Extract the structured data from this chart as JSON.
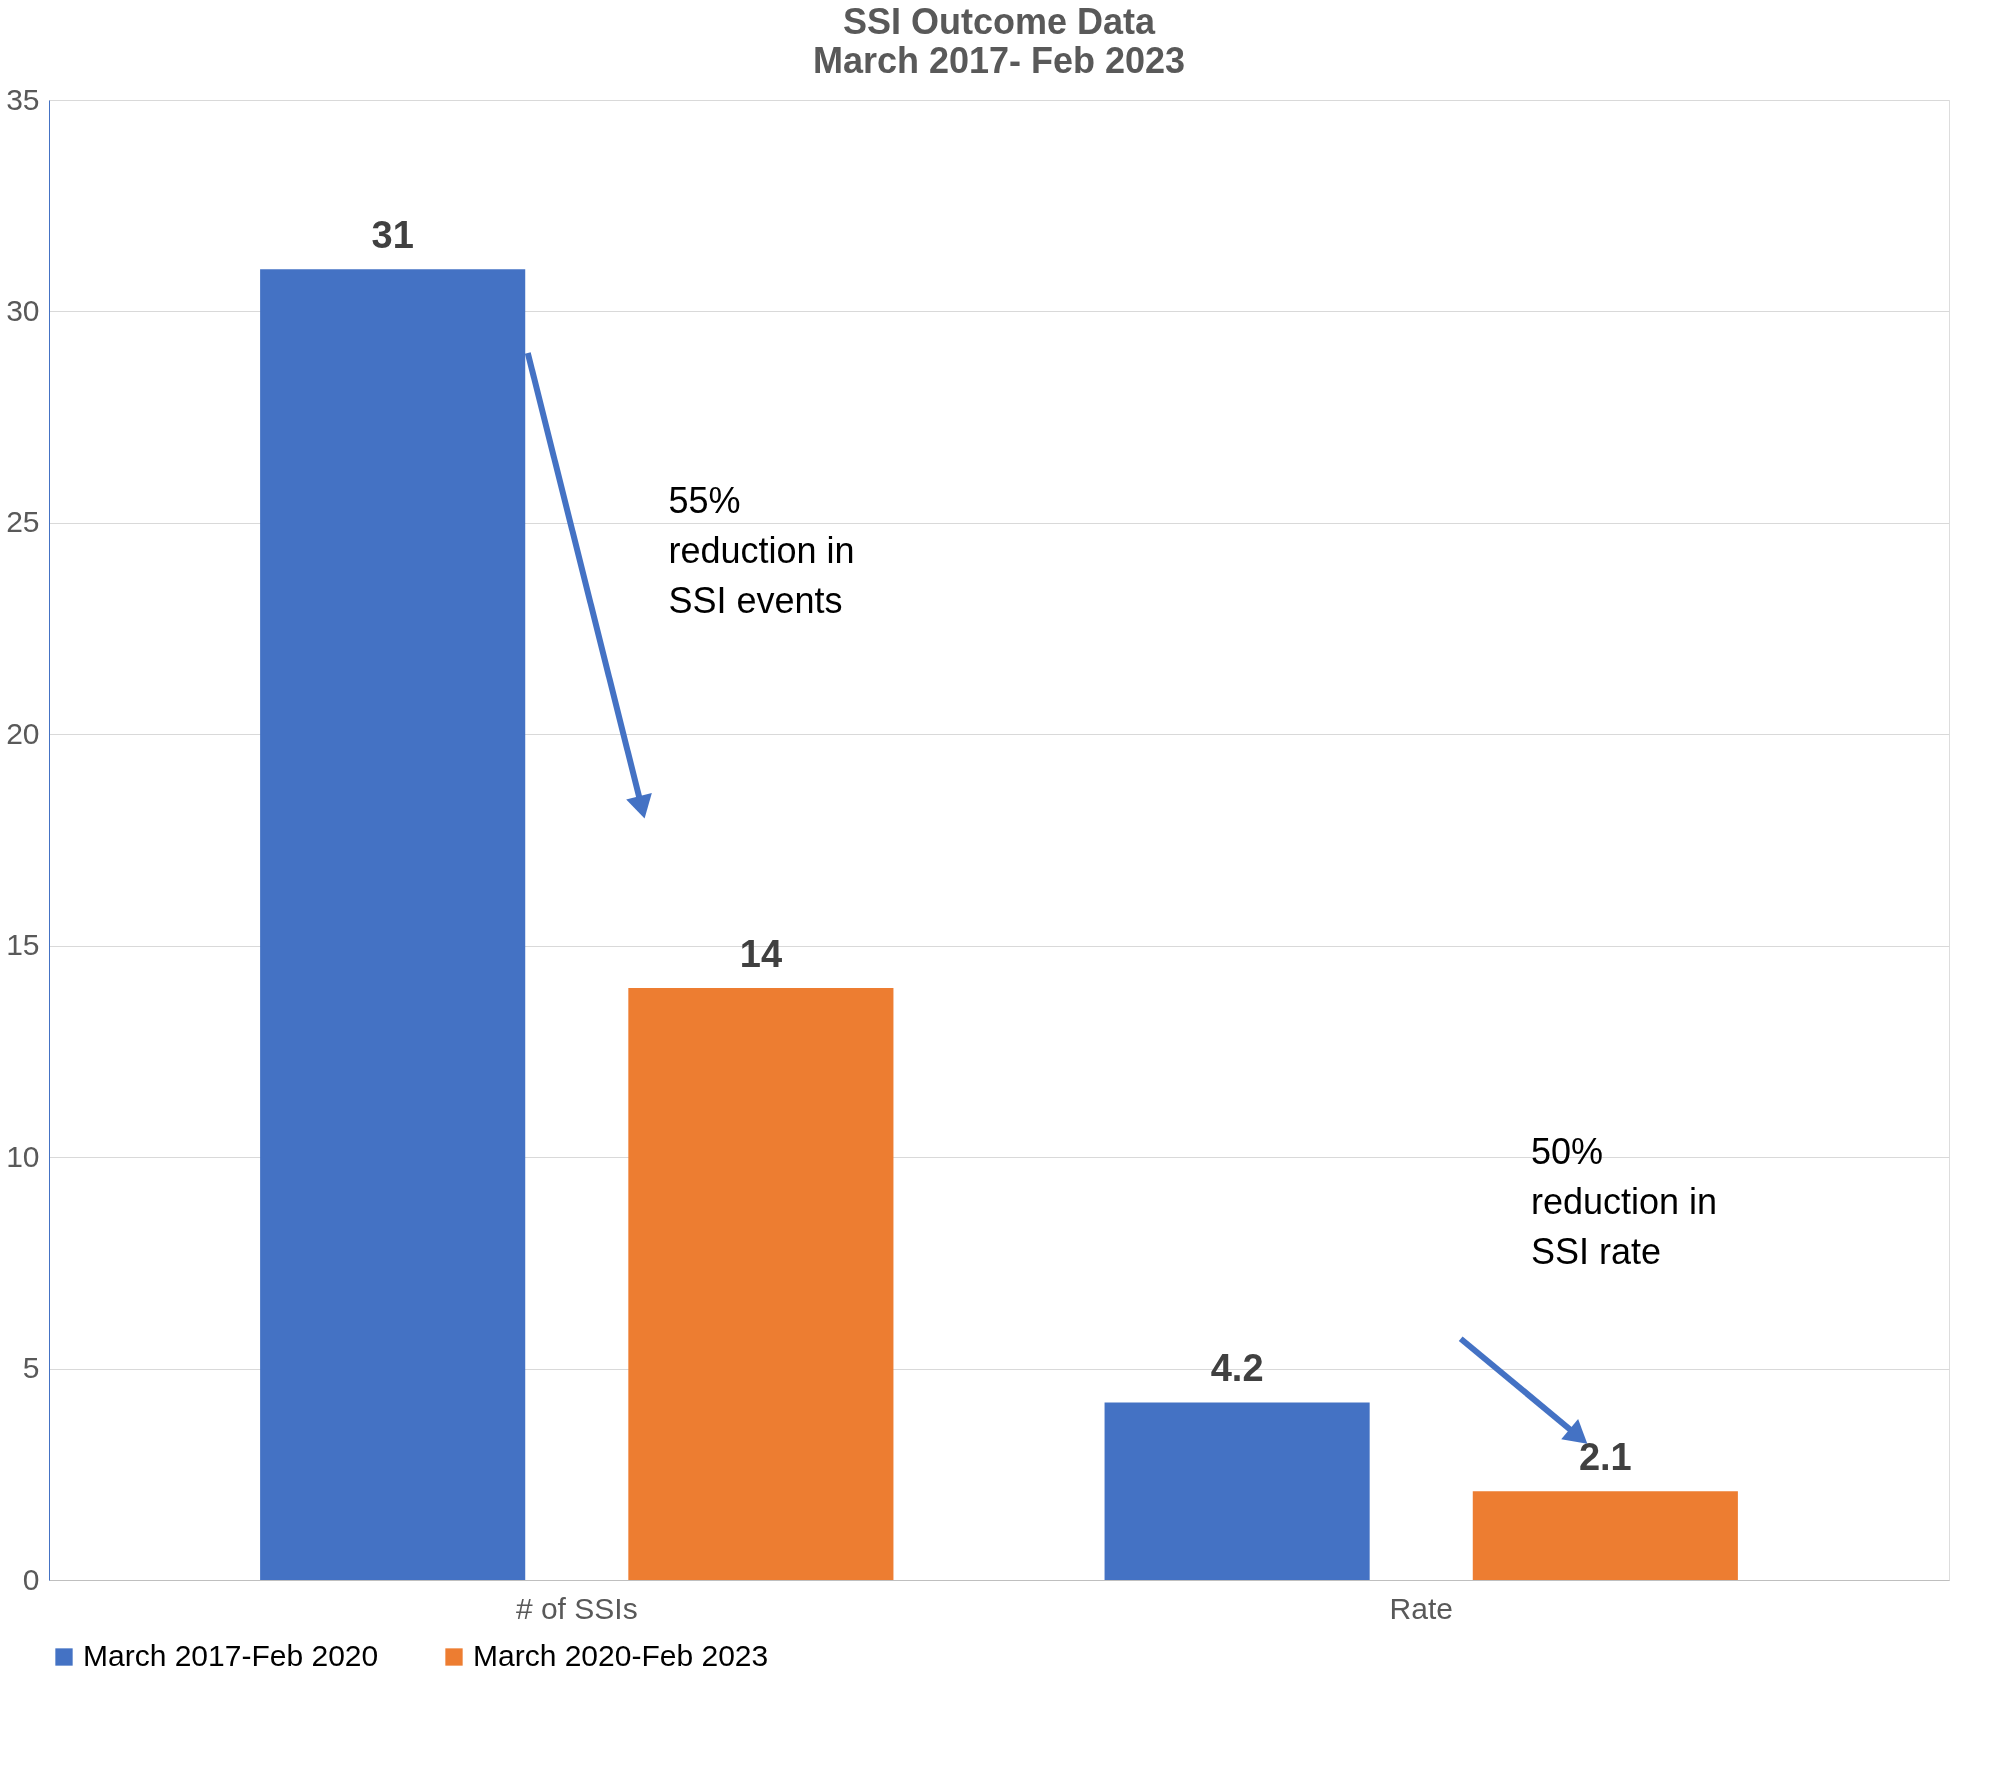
{
  "chart_data": {
    "type": "bar",
    "title": "SSI Outcome Data",
    "subtitle": "March 2017- Feb 2023",
    "categories": [
      "# of SSIs",
      "Rate"
    ],
    "series": [
      {
        "name": "March 2017-Feb 2020",
        "color": "#4472c4",
        "values": [
          31,
          4.2
        ]
      },
      {
        "name": "March 2020-Feb 2023",
        "color": "#ed7d31",
        "values": [
          14,
          2.1
        ]
      }
    ],
    "ylim": [
      0,
      35
    ],
    "yticks": [
      0,
      5,
      10,
      15,
      20,
      25,
      30,
      35
    ],
    "grid": "y",
    "legend": "bottom",
    "data_labels": true,
    "annotations": [
      "55% reduction in SSI events",
      "50% reduction in SSI rate"
    ]
  }
}
